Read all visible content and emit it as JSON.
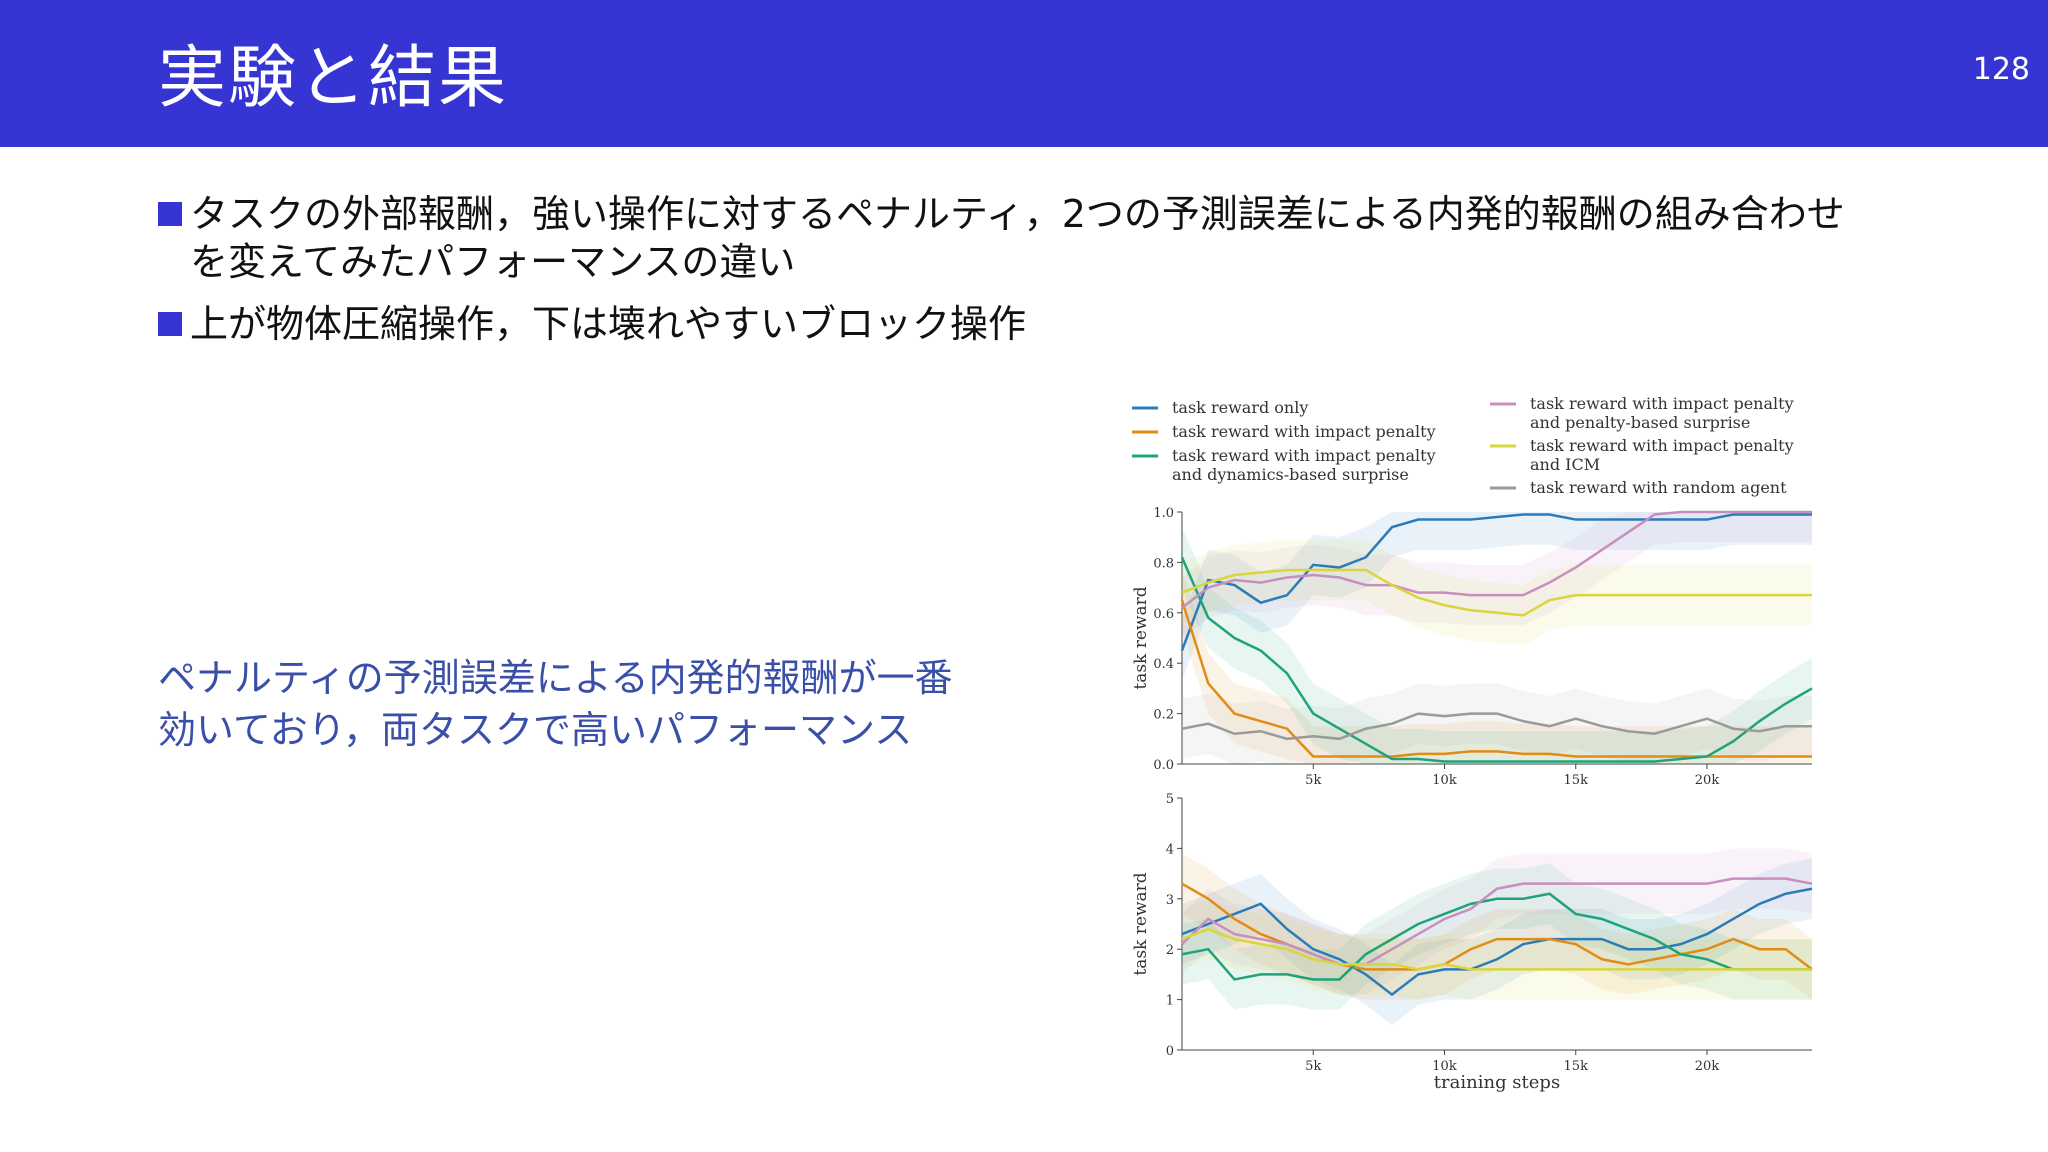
{
  "slide": {
    "title": "実験と結果",
    "page_number": "128",
    "bullets": [
      "タスクの外部報酬，強い操作に対するペナルティ，2つの予測誤差による内発的報酬の組み合わせを変えてみたパフォーマンスの違い",
      "上が物体圧縮操作，下は壊れやすいブロック操作"
    ],
    "note_lines": [
      "ペナルティの予測誤差による内発的報酬が一番",
      "効いており，両タスクで高いパフォーマンス"
    ],
    "colors": {
      "header": "#3635d3",
      "note_text": "#3a4fa8"
    }
  },
  "chart_data": [
    {
      "type": "line",
      "ylabel": "task reward",
      "ylim": [
        0,
        1.0
      ],
      "yticks": [
        "0.0",
        "0.2",
        "0.4",
        "0.6",
        "0.8",
        "1.0"
      ],
      "xticks": [
        "5k",
        "10k",
        "15k",
        "20k"
      ],
      "xlim": [
        0,
        24000
      ],
      "x": [
        0,
        1000,
        2000,
        3000,
        4000,
        5000,
        6000,
        7000,
        8000,
        9000,
        10000,
        11000,
        12000,
        13000,
        14000,
        15000,
        16000,
        17000,
        18000,
        19000,
        20000,
        21000,
        22000,
        23000,
        24000
      ],
      "series": [
        {
          "name": "task reward only",
          "color": "#2b7bb9",
          "values": [
            0.45,
            0.73,
            0.71,
            0.64,
            0.67,
            0.79,
            0.78,
            0.82,
            0.94,
            0.97,
            0.97,
            0.97,
            0.98,
            0.99,
            0.99,
            0.97,
            0.97,
            0.97,
            0.97,
            0.97,
            0.97,
            0.99,
            0.99,
            0.99,
            0.99
          ]
        },
        {
          "name": "task reward with impact penalty",
          "color": "#e08c17",
          "values": [
            0.65,
            0.32,
            0.2,
            0.17,
            0.14,
            0.03,
            0.03,
            0.03,
            0.03,
            0.04,
            0.04,
            0.05,
            0.05,
            0.04,
            0.04,
            0.03,
            0.03,
            0.03,
            0.03,
            0.03,
            0.03,
            0.03,
            0.03,
            0.03,
            0.03
          ]
        },
        {
          "name": "task reward with impact penalty and dynamics-based surprise",
          "color": "#1ea37a",
          "values": [
            0.82,
            0.58,
            0.5,
            0.45,
            0.36,
            0.2,
            0.14,
            0.08,
            0.02,
            0.02,
            0.01,
            0.01,
            0.01,
            0.01,
            0.01,
            0.01,
            0.01,
            0.01,
            0.01,
            0.02,
            0.03,
            0.09,
            0.17,
            0.24,
            0.3
          ]
        },
        {
          "name": "task reward with impact penalty and penalty-based surprise",
          "color": "#c78ec0",
          "values": [
            0.62,
            0.7,
            0.73,
            0.72,
            0.74,
            0.75,
            0.74,
            0.71,
            0.71,
            0.68,
            0.68,
            0.67,
            0.67,
            0.67,
            0.72,
            0.78,
            0.85,
            0.92,
            0.99,
            1.0,
            1.0,
            1.0,
            1.0,
            1.0,
            1.0
          ]
        },
        {
          "name": "task reward with impact penalty and ICM",
          "color": "#d9d53a",
          "values": [
            0.68,
            0.72,
            0.75,
            0.76,
            0.77,
            0.77,
            0.77,
            0.77,
            0.71,
            0.66,
            0.63,
            0.61,
            0.6,
            0.59,
            0.65,
            0.67,
            0.67,
            0.67,
            0.67,
            0.67,
            0.67,
            0.67,
            0.67,
            0.67,
            0.67
          ]
        },
        {
          "name": "task reward with random agent",
          "color": "#9a9a9a",
          "values": [
            0.14,
            0.16,
            0.12,
            0.13,
            0.1,
            0.11,
            0.1,
            0.14,
            0.16,
            0.2,
            0.19,
            0.2,
            0.2,
            0.17,
            0.15,
            0.18,
            0.15,
            0.13,
            0.12,
            0.15,
            0.18,
            0.14,
            0.13,
            0.15,
            0.15
          ]
        }
      ]
    },
    {
      "type": "line",
      "xlabel": "training steps",
      "ylabel": "task reward",
      "ylim": [
        0,
        5
      ],
      "yticks": [
        "0",
        "1",
        "2",
        "3",
        "4",
        "5"
      ],
      "xticks": [
        "5k",
        "10k",
        "15k",
        "20k"
      ],
      "xlim": [
        0,
        24000
      ],
      "x": [
        0,
        1000,
        2000,
        3000,
        4000,
        5000,
        6000,
        7000,
        8000,
        9000,
        10000,
        11000,
        12000,
        13000,
        14000,
        15000,
        16000,
        17000,
        18000,
        19000,
        20000,
        21000,
        22000,
        23000,
        24000
      ],
      "series": [
        {
          "name": "task reward only",
          "color": "#2b7bb9",
          "values": [
            2.3,
            2.5,
            2.7,
            2.9,
            2.4,
            2.0,
            1.8,
            1.5,
            1.1,
            1.5,
            1.6,
            1.6,
            1.8,
            2.1,
            2.2,
            2.2,
            2.2,
            2.0,
            2.0,
            2.1,
            2.3,
            2.6,
            2.9,
            3.1,
            3.2
          ]
        },
        {
          "name": "task reward with impact penalty",
          "color": "#e08c17",
          "values": [
            3.3,
            3.0,
            2.6,
            2.3,
            2.1,
            1.9,
            1.7,
            1.6,
            1.6,
            1.6,
            1.7,
            2.0,
            2.2,
            2.2,
            2.2,
            2.1,
            1.8,
            1.7,
            1.8,
            1.9,
            2.0,
            2.2,
            2.0,
            2.0,
            1.6
          ]
        },
        {
          "name": "task reward with impact penalty and dynamics-based surprise",
          "color": "#1ea37a",
          "values": [
            1.9,
            2.0,
            1.4,
            1.5,
            1.5,
            1.4,
            1.4,
            1.9,
            2.2,
            2.5,
            2.7,
            2.9,
            3.0,
            3.0,
            3.1,
            2.7,
            2.6,
            2.4,
            2.2,
            1.9,
            1.8,
            1.6,
            1.6,
            1.6,
            1.6
          ]
        },
        {
          "name": "task reward with impact penalty and penalty-based surprise",
          "color": "#c78ec0",
          "values": [
            2.1,
            2.6,
            2.3,
            2.2,
            2.1,
            1.9,
            1.7,
            1.7,
            2.0,
            2.3,
            2.6,
            2.8,
            3.2,
            3.3,
            3.3,
            3.3,
            3.3,
            3.3,
            3.3,
            3.3,
            3.3,
            3.4,
            3.4,
            3.4,
            3.3
          ]
        },
        {
          "name": "task reward with impact penalty and ICM",
          "color": "#d9d53a",
          "values": [
            2.2,
            2.4,
            2.2,
            2.1,
            2.0,
            1.8,
            1.7,
            1.7,
            1.7,
            1.6,
            1.7,
            1.6,
            1.6,
            1.6,
            1.6,
            1.6,
            1.6,
            1.6,
            1.6,
            1.6,
            1.6,
            1.6,
            1.6,
            1.6,
            1.6
          ]
        }
      ]
    }
  ]
}
